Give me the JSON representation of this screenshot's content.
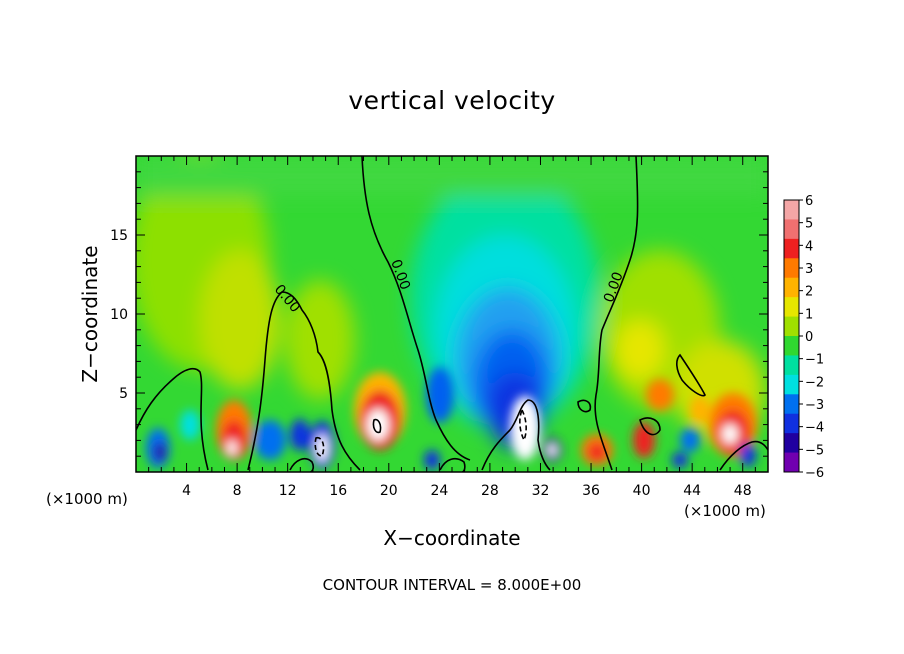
{
  "chart_data": {
    "type": "heatmap",
    "title": "vertical velocity",
    "xlabel": "X−coordinate",
    "ylabel": "Z−coordinate",
    "x_unit_left": "(×1000 m)",
    "x_unit_right": "(×1000 m)",
    "xlim": [
      0,
      50
    ],
    "ylim": [
      0,
      20
    ],
    "x_ticks": [
      4,
      8,
      12,
      16,
      20,
      24,
      28,
      32,
      36,
      40,
      44,
      48
    ],
    "y_ticks": [
      5,
      10,
      15
    ],
    "colorbar": {
      "levels": [
        6,
        5,
        4,
        3,
        2,
        1,
        0,
        -1,
        -2,
        -3,
        -4,
        -5,
        -6
      ],
      "labels": [
        "6",
        "5",
        "4",
        "3",
        "2",
        "1",
        "0",
        "−1",
        "−2",
        "−3",
        "−4",
        "−5",
        "−6"
      ],
      "colors": [
        "#f4a6a6",
        "#f07070",
        "#ee2020",
        "#ff7a00",
        "#ffb300",
        "#e6e600",
        "#a0e000",
        "#30d830",
        "#00e0a0",
        "#00e0e0",
        "#0070f0",
        "#1030e0",
        "#2000a0",
        "#7000b0"
      ]
    },
    "contour_labels": [
      "0.00",
      "0.00",
      "0.00"
    ],
    "contour_interval_text": "CONTOUR INTERVAL = 8.000E+00",
    "features": [
      {
        "x": 30.5,
        "z": 4.0,
        "w": "-5"
      },
      {
        "x": 29.0,
        "z": 7.0,
        "w": "-3"
      },
      {
        "x": 19.0,
        "z": 3.0,
        "w": "5"
      },
      {
        "x": 7.5,
        "z": 2.5,
        "w": "5"
      },
      {
        "x": 47.0,
        "z": 3.0,
        "w": "5"
      },
      {
        "x": 14.5,
        "z": 2.0,
        "w": "-5"
      },
      {
        "x": 2.0,
        "z": 1.5,
        "w": "-4"
      },
      {
        "x": 36.5,
        "z": 1.5,
        "w": "5"
      },
      {
        "x": 40.5,
        "z": 4.5,
        "w": "4"
      },
      {
        "x": 32.5,
        "z": 1.5,
        "w": "-5"
      }
    ]
  }
}
